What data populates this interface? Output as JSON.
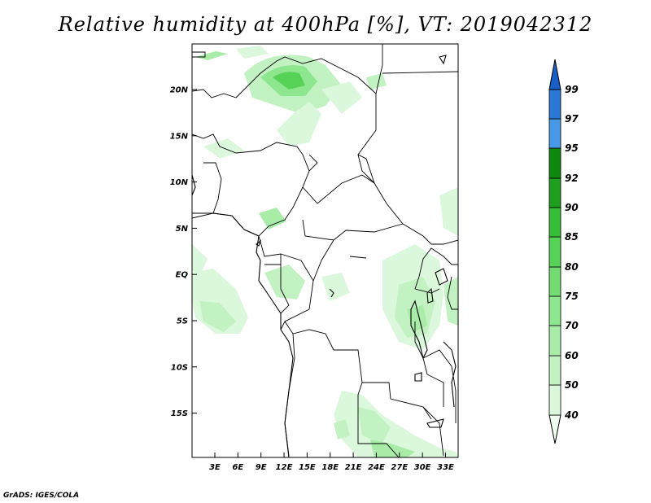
{
  "title": "Relative humidity at 400hPa [%], VT: 2019042312",
  "credit": "GrADS: IGES/COLA",
  "map": {
    "lat_ticks": [
      "20N",
      "15N",
      "10N",
      "5N",
      "EQ",
      "5S",
      "10S",
      "15S"
    ],
    "lon_ticks": [
      "3E",
      "6E",
      "9E",
      "12E",
      "15E",
      "18E",
      "21E",
      "24E",
      "27E",
      "30E",
      "33E"
    ]
  },
  "colorbar": {
    "levels": [
      "40",
      "50",
      "60",
      "70",
      "75",
      "80",
      "85",
      "90",
      "92",
      "95",
      "97",
      "99"
    ],
    "colors": [
      "#f0fff0",
      "#dcf8dc",
      "#c2f2c2",
      "#a8eca8",
      "#8ee68e",
      "#72dc72",
      "#56d256",
      "#36be36",
      "#1ea01e",
      "#0e880e",
      "#4898e8",
      "#2c78d8",
      "#1860c8"
    ]
  }
}
